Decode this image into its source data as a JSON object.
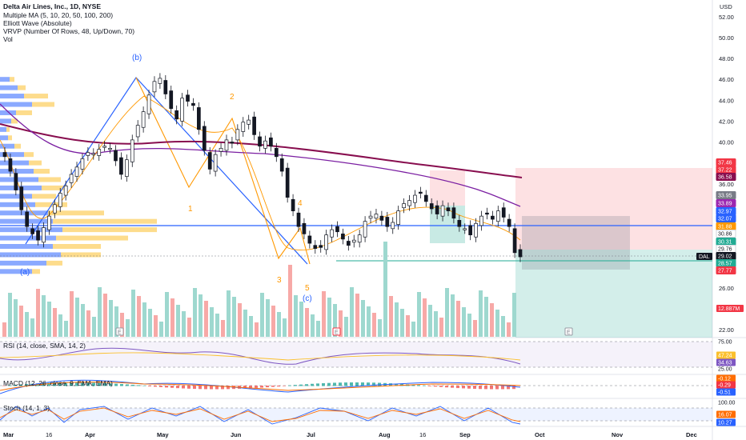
{
  "legend": {
    "title": "Delta Air Lines, Inc., 1D, NYSE",
    "lines": [
      "Multiple MA (5, 10, 20, 50, 100, 200)",
      "Elliott Wave (Absolute)",
      "VRVP (Number Of Rows, 48, Up/Down, 70)",
      "Vol"
    ]
  },
  "price_axis": {
    "currency": "USD",
    "ticks": [
      {
        "label": "52.00",
        "v": 52
      },
      {
        "label": "50.00",
        "v": 50
      },
      {
        "label": "48.00",
        "v": 48
      },
      {
        "label": "46.00",
        "v": 46
      },
      {
        "label": "44.00",
        "v": 44
      },
      {
        "label": "42.00",
        "v": 42
      },
      {
        "label": "40.00",
        "v": 40
      },
      {
        "label": "36.00",
        "v": 36
      },
      {
        "label": "26.00",
        "v": 26
      },
      {
        "label": "22.00",
        "v": 22
      }
    ]
  },
  "price_tags": [
    {
      "label": "37.46",
      "v": 37.46,
      "color": "#f23645"
    },
    {
      "label": "37.22",
      "v": 36.98,
      "color": "#f23645"
    },
    {
      "label": "36.58",
      "v": 36.5,
      "color": "#880e4f"
    },
    {
      "label": "33.95",
      "v": 33.95,
      "color": "#787b86"
    },
    {
      "label": "33.89",
      "v": 33.15,
      "color": "#9c27b0"
    },
    {
      "label": "32.97",
      "v": 32.35,
      "color": "#2962ff"
    },
    {
      "label": "32.07",
      "v": 31.55,
      "color": "#2962ff"
    },
    {
      "label": "31.88",
      "v": 30.78,
      "color": "#ff9800"
    },
    {
      "label": "30.86",
      "v": 29.98,
      "color": "#ffffff",
      "text": "#131722"
    },
    {
      "label": "30.31",
      "v": 29.2,
      "color": "#22ab94"
    },
    {
      "label": "29.76",
      "v": 28.4,
      "color": "#ffffff",
      "text": "#131722"
    },
    {
      "label": "29.02",
      "v": 27.6,
      "color": "#131722"
    },
    {
      "label": "28.57",
      "v": 26.8,
      "color": "#22ab94"
    },
    {
      "label": "27.77",
      "v": 26.0,
      "color": "#f23645"
    }
  ],
  "last_price": {
    "symbol": "DAL",
    "label": "29.02"
  },
  "volume_tag": {
    "label": "12.887M",
    "color": "#f23645"
  },
  "time_axis": [
    "Mar",
    "16",
    "Apr",
    "May",
    "Jun",
    "Jul",
    "Aug",
    "16",
    "Sep",
    "Oct",
    "Nov",
    "Dec"
  ],
  "wave_labels": [
    "(a)",
    "(b)",
    "(c)",
    "1",
    "2",
    "3",
    "4",
    "5"
  ],
  "event_markers": [
    "E",
    "E",
    "E"
  ],
  "panes": {
    "rsi": {
      "legend": "RSI (14, close, SMA, 14, 2)",
      "tags": [
        {
          "label": "75.00"
        },
        {
          "label": "47.24",
          "color": "#fbc02d"
        },
        {
          "label": "34.63",
          "color": "#7e57c2"
        },
        {
          "label": "25.00"
        }
      ]
    },
    "macd": {
      "legend": "MACD (12, 26, close, 9, EMA, EMA)",
      "tags": [
        {
          "label": "-0.12",
          "color": "#ff6d00"
        },
        {
          "label": "-0.29",
          "color": "#f23645"
        },
        {
          "label": "-0.51",
          "color": "#2962ff"
        }
      ]
    },
    "stoch": {
      "legend": "Stoch (14, 1, 3)",
      "tags": [
        {
          "label": "100.00"
        },
        {
          "label": "16.07",
          "color": "#ff6d00"
        },
        {
          "label": "10.27",
          "color": "#2962ff"
        }
      ]
    }
  }
}
